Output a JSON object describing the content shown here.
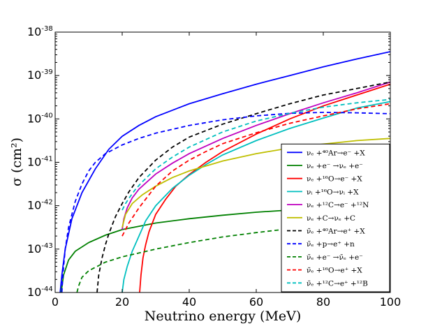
{
  "chart_data": {
    "type": "line",
    "title": "",
    "xlabel": "Neutrino energy (MeV)",
    "ylabel": "σ (cm²)",
    "xlim": [
      0,
      100
    ],
    "ylim_log10": [
      -44,
      -38
    ],
    "y_scale": "log",
    "x_ticks": [
      "0",
      "20",
      "40",
      "60",
      "80",
      "100"
    ],
    "y_ticks": [
      {
        "base": "10",
        "exp": "-44"
      },
      {
        "base": "10",
        "exp": "-43"
      },
      {
        "base": "10",
        "exp": "-42"
      },
      {
        "base": "10",
        "exp": "-41"
      },
      {
        "base": "10",
        "exp": "-40"
      },
      {
        "base": "10",
        "exp": "-39"
      },
      {
        "base": "10",
        "exp": "-38"
      }
    ],
    "legend_position": "lower-right",
    "series": [
      {
        "name": "νe + 40Ar → e− + X",
        "legend": "νₑ +⁴⁰Ar→e⁻ +X",
        "color": "#0000ff",
        "dash": "solid",
        "points": [
          [
            1.5,
            -44
          ],
          [
            2,
            -43.6
          ],
          [
            3,
            -43
          ],
          [
            5,
            -42.3
          ],
          [
            8,
            -41.7
          ],
          [
            12,
            -41.15
          ],
          [
            16,
            -40.7
          ],
          [
            20,
            -40.4
          ],
          [
            25,
            -40.15
          ],
          [
            30,
            -39.95
          ],
          [
            40,
            -39.65
          ],
          [
            50,
            -39.42
          ],
          [
            60,
            -39.2
          ],
          [
            70,
            -39.0
          ],
          [
            80,
            -38.8
          ],
          [
            90,
            -38.62
          ],
          [
            100,
            -38.45
          ]
        ]
      },
      {
        "name": "νe + e− → νe + e−",
        "legend": "νₑ +e⁻ →νₑ +e⁻",
        "color": "#008000",
        "dash": "solid",
        "points": [
          [
            1.8,
            -44
          ],
          [
            2.5,
            -43.6
          ],
          [
            4,
            -43.25
          ],
          [
            6,
            -43.05
          ],
          [
            10,
            -42.85
          ],
          [
            15,
            -42.68
          ],
          [
            20,
            -42.55
          ],
          [
            30,
            -42.4
          ],
          [
            40,
            -42.3
          ],
          [
            50,
            -42.22
          ],
          [
            60,
            -42.15
          ],
          [
            70,
            -42.1
          ],
          [
            80,
            -42.06
          ],
          [
            90,
            -42.04
          ],
          [
            100,
            -42.02
          ]
        ]
      },
      {
        "name": "νe + 16O → e− + X",
        "legend": "νₑ +¹⁶O→e⁻ +X",
        "color": "#ff0000",
        "dash": "solid",
        "points": [
          [
            25.2,
            -44
          ],
          [
            25.6,
            -43.6
          ],
          [
            26.2,
            -43.2
          ],
          [
            27,
            -42.9
          ],
          [
            28,
            -42.6
          ],
          [
            30,
            -42.2
          ],
          [
            33,
            -41.85
          ],
          [
            36,
            -41.55
          ],
          [
            40,
            -41.28
          ],
          [
            45,
            -41.0
          ],
          [
            50,
            -40.75
          ],
          [
            60,
            -40.35
          ],
          [
            70,
            -40.0
          ],
          [
            80,
            -39.7
          ],
          [
            90,
            -39.45
          ],
          [
            100,
            -39.2
          ]
        ]
      },
      {
        "name": "νi + 16O → νi + X",
        "legend": "νᵢ +¹⁶O→νᵢ +X",
        "color": "#00bfbf",
        "dash": "solid",
        "points": [
          [
            20,
            -44
          ],
          [
            20.5,
            -43.7
          ],
          [
            21.5,
            -43.4
          ],
          [
            23,
            -43.05
          ],
          [
            25,
            -42.7
          ],
          [
            27,
            -42.35
          ],
          [
            30,
            -42.0
          ],
          [
            35,
            -41.6
          ],
          [
            40,
            -41.3
          ],
          [
            45,
            -41.05
          ],
          [
            50,
            -40.83
          ],
          [
            60,
            -40.5
          ],
          [
            70,
            -40.22
          ],
          [
            80,
            -39.98
          ],
          [
            90,
            -39.75
          ],
          [
            100,
            -39.6
          ]
        ]
      },
      {
        "name": "νe + 12C → e− + 12N",
        "legend": "νₑ +¹²C→e⁻ +¹²N",
        "color": "#bf00bf",
        "dash": "solid",
        "points": [
          [
            20,
            -42.55
          ],
          [
            20.5,
            -42.3
          ],
          [
            21.5,
            -42.05
          ],
          [
            23,
            -41.82
          ],
          [
            25,
            -41.62
          ],
          [
            30,
            -41.27
          ],
          [
            35,
            -41.02
          ],
          [
            40,
            -40.8
          ],
          [
            50,
            -40.45
          ],
          [
            60,
            -40.15
          ],
          [
            70,
            -39.88
          ],
          [
            80,
            -39.63
          ],
          [
            90,
            -39.4
          ],
          [
            100,
            -39.15
          ]
        ]
      },
      {
        "name": "νe + C → νe + C",
        "legend": "νₑ +C→νₑ +C",
        "color": "#bfbf00",
        "dash": "solid",
        "points": [
          [
            20,
            -42.5
          ],
          [
            21,
            -42.2
          ],
          [
            23,
            -41.95
          ],
          [
            26,
            -41.75
          ],
          [
            30,
            -41.55
          ],
          [
            35,
            -41.35
          ],
          [
            40,
            -41.2
          ],
          [
            50,
            -40.97
          ],
          [
            60,
            -40.8
          ],
          [
            70,
            -40.67
          ],
          [
            80,
            -40.58
          ],
          [
            90,
            -40.5
          ],
          [
            100,
            -40.45
          ]
        ]
      },
      {
        "name": "ν̄e + 40Ar → e+ + X",
        "legend": "ν̄ₑ +⁴⁰Ar→e⁺ +X",
        "color": "#000000",
        "dash": "dashed",
        "points": [
          [
            12.5,
            -44
          ],
          [
            13,
            -43.6
          ],
          [
            14,
            -43.2
          ],
          [
            15,
            -42.9
          ],
          [
            16,
            -42.65
          ],
          [
            18,
            -42.25
          ],
          [
            20,
            -41.95
          ],
          [
            22,
            -41.68
          ],
          [
            25,
            -41.35
          ],
          [
            30,
            -40.95
          ],
          [
            35,
            -40.65
          ],
          [
            40,
            -40.42
          ],
          [
            50,
            -40.12
          ],
          [
            60,
            -39.88
          ],
          [
            70,
            -39.65
          ],
          [
            80,
            -39.45
          ],
          [
            90,
            -39.3
          ],
          [
            100,
            -39.15
          ]
        ]
      },
      {
        "name": "ν̄e + p → e+ + n",
        "legend": "ν̄ₑ +p→e⁺ +n",
        "color": "#0000ff",
        "dash": "dashed",
        "points": [
          [
            2,
            -44
          ],
          [
            2.3,
            -43.6
          ],
          [
            3,
            -43
          ],
          [
            4,
            -42.5
          ],
          [
            6,
            -41.9
          ],
          [
            8,
            -41.5
          ],
          [
            10,
            -41.2
          ],
          [
            12,
            -41.0
          ],
          [
            15,
            -40.8
          ],
          [
            20,
            -40.6
          ],
          [
            25,
            -40.45
          ],
          [
            30,
            -40.33
          ],
          [
            40,
            -40.15
          ],
          [
            50,
            -40.02
          ],
          [
            60,
            -39.93
          ],
          [
            70,
            -39.87
          ],
          [
            80,
            -39.85
          ],
          [
            90,
            -39.86
          ],
          [
            100,
            -39.88
          ]
        ]
      },
      {
        "name": "ν̄e + e− → ν̄e + e−",
        "legend": "ν̄ₑ +e⁻ →ν̄ₑ +e⁻",
        "color": "#008000",
        "dash": "dashed",
        "points": [
          [
            6.5,
            -44
          ],
          [
            7,
            -43.85
          ],
          [
            8,
            -43.65
          ],
          [
            10,
            -43.5
          ],
          [
            15,
            -43.3
          ],
          [
            20,
            -43.18
          ],
          [
            30,
            -43.0
          ],
          [
            40,
            -42.85
          ],
          [
            50,
            -42.72
          ],
          [
            60,
            -42.62
          ],
          [
            70,
            -42.53
          ],
          [
            80,
            -42.45
          ],
          [
            90,
            -42.4
          ],
          [
            100,
            -42.35
          ]
        ]
      },
      {
        "name": "ν̄e + 16O → e+ + X",
        "legend": "ν̄ₑ +¹⁶O→e⁺ +X",
        "color": "#ff0000",
        "dash": "dashed",
        "points": [
          [
            20,
            -42.7
          ],
          [
            22,
            -42.4
          ],
          [
            25,
            -42.05
          ],
          [
            28,
            -41.75
          ],
          [
            30,
            -41.55
          ],
          [
            35,
            -41.2
          ],
          [
            40,
            -40.95
          ],
          [
            45,
            -40.75
          ],
          [
            50,
            -40.57
          ],
          [
            60,
            -40.32
          ],
          [
            70,
            -40.1
          ],
          [
            80,
            -39.93
          ],
          [
            90,
            -39.77
          ],
          [
            100,
            -39.65
          ]
        ]
      },
      {
        "name": "ν̄e + 12C → e+ + 12B",
        "legend": "ν̄ₑ +¹²C→e⁺ +¹²B",
        "color": "#00bfbf",
        "dash": "dashed",
        "points": [
          [
            20,
            -42.1
          ],
          [
            21,
            -41.95
          ],
          [
            22,
            -41.83
          ],
          [
            24,
            -41.62
          ],
          [
            26,
            -41.45
          ],
          [
            30,
            -41.15
          ],
          [
            35,
            -40.88
          ],
          [
            40,
            -40.65
          ],
          [
            50,
            -40.3
          ],
          [
            60,
            -40.05
          ],
          [
            70,
            -39.87
          ],
          [
            80,
            -39.73
          ],
          [
            90,
            -39.63
          ],
          [
            100,
            -39.55
          ]
        ]
      }
    ]
  }
}
